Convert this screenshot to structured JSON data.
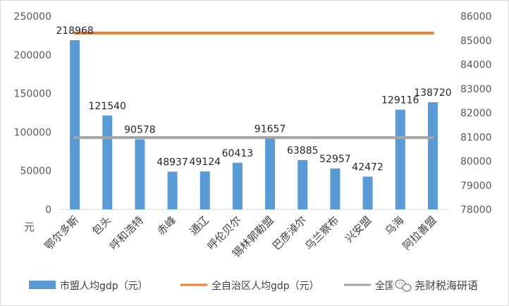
{
  "chart_data": {
    "type": "bar",
    "categories": [
      "鄂尔多斯",
      "包头",
      "呼和浩特",
      "赤峰",
      "通辽",
      "呼伦贝尔",
      "锡林郭勒盟",
      "巴彦淖尔",
      "乌兰察布",
      "兴安盟",
      "乌海",
      "阿拉善盟"
    ],
    "series": [
      {
        "name": "市盟人均gdp（元）",
        "type": "bar",
        "axis": "left",
        "color": "#5b9bd5",
        "values": [
          218968,
          121540,
          90578,
          48937,
          49124,
          60413,
          91657,
          63885,
          52957,
          42472,
          129116,
          138720
        ]
      },
      {
        "name": "全自治区人均gdp（元）",
        "type": "line",
        "axis": "right",
        "color": "#ed7d31",
        "value": 85302
      },
      {
        "name": "全国人均gdp（元）",
        "type": "line",
        "axis": "right",
        "color": "#a5a5a5",
        "value": 80976
      }
    ],
    "data_labels": [
      "218968",
      "121540",
      "90578",
      "48937",
      "49124",
      "60413",
      "91657",
      "63885",
      "52957",
      "42472",
      "129116",
      "138720"
    ],
    "y_left": {
      "min": 0,
      "max": 250000,
      "step": 50000,
      "ticks": [
        "0",
        "50000",
        "100000",
        "150000",
        "200000",
        "250000"
      ]
    },
    "y_right": {
      "min": 78000,
      "max": 86000,
      "step": 1000,
      "ticks": [
        "78000",
        "79000",
        "80000",
        "81000",
        "82000",
        "83000",
        "84000",
        "85000",
        "86000"
      ]
    },
    "ylabel": "元",
    "legend": {
      "placement": "bottom",
      "entries": [
        "市盟人均gdp（元）",
        "全自治区人均gdp（元）",
        "全国"
      ]
    },
    "grid": false
  },
  "watermark": {
    "text": "尧财税海研语",
    "icon": "wechat-icon"
  }
}
